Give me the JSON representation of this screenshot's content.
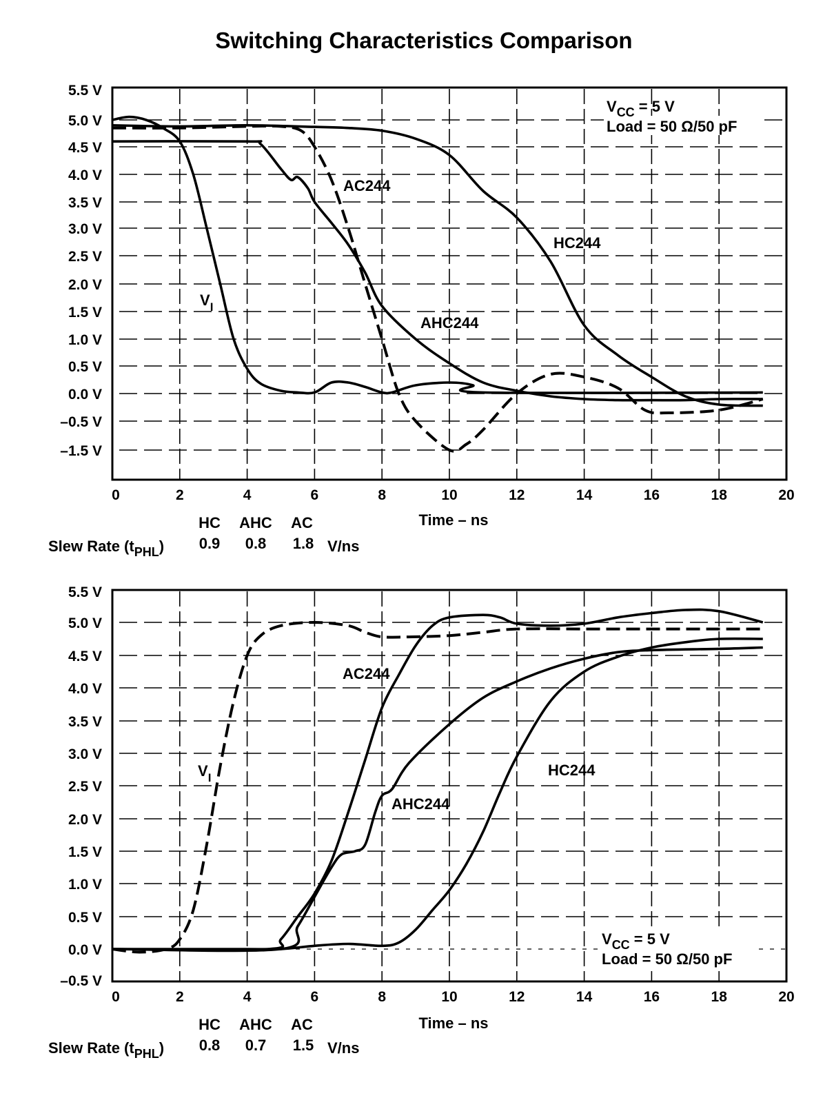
{
  "chart_data": [
    {
      "type": "line",
      "title": "Switching Characteristics Comparison",
      "xlabel": "Time – ns",
      "ylabel": "",
      "xlim": [
        0,
        20
      ],
      "x_ticks": [
        "0",
        "2",
        "4",
        "6",
        "8",
        "10",
        "12",
        "14",
        "16",
        "18",
        "20"
      ],
      "y_ticks": [
        {
          "v": 5.5,
          "label": "5.5 V"
        },
        {
          "v": 5.0,
          "label": "5.0 V"
        },
        {
          "v": 4.5,
          "label": "4.5 V"
        },
        {
          "v": 4.0,
          "label": "4.0 V"
        },
        {
          "v": 3.5,
          "label": "3.5 V"
        },
        {
          "v": 3.0,
          "label": "3.0 V"
        },
        {
          "v": 2.5,
          "label": "2.5 V"
        },
        {
          "v": 2.0,
          "label": "2.0 V"
        },
        {
          "v": 1.5,
          "label": "1.5 V"
        },
        {
          "v": 1.0,
          "label": "1.0 V"
        },
        {
          "v": 0.5,
          "label": "0.5 V"
        },
        {
          "v": 0.0,
          "label": "0.0 V"
        },
        {
          "v": -0.5,
          "label": "–0.5 V"
        },
        {
          "v": -1.5,
          "label": "–1.5 V"
        }
      ],
      "grid": true,
      "annotation": {
        "line1_main": "V",
        "line1_sub": "CC",
        "line1_rest": " = 5 V",
        "line2": "Load = 50 Ω/50 pF",
        "placement": "top-right"
      },
      "series": [
        {
          "name": "VI",
          "style": "solid",
          "label_main": "V",
          "label_sub": "I",
          "x": [
            0,
            0.5,
            1,
            1.5,
            2,
            2.4,
            2.8,
            3.2,
            3.6,
            4,
            4.4,
            5,
            5.5,
            6,
            6.5,
            7,
            7.5,
            8,
            8.3,
            9,
            10,
            10.7,
            11,
            19.3
          ],
          "y": [
            5.0,
            5.05,
            5.0,
            4.85,
            4.6,
            4.0,
            3.0,
            2.0,
            1.0,
            0.45,
            0.18,
            0.05,
            0.02,
            0.02,
            0.2,
            0.2,
            0.12,
            0.02,
            0.02,
            0.15,
            0.2,
            0.15,
            0.02,
            0.02
          ]
        },
        {
          "name": "AC244",
          "style": "dashed",
          "label": "AC244",
          "x": [
            0,
            2,
            4,
            5,
            5.6,
            6,
            6.5,
            7,
            7.5,
            8,
            8.5,
            9,
            10,
            10.5,
            11,
            12,
            13,
            14,
            15,
            15.8,
            16.5,
            18,
            19.3
          ],
          "y": [
            4.85,
            4.85,
            4.88,
            4.88,
            4.8,
            4.5,
            3.9,
            3.0,
            2.0,
            1.0,
            0.0,
            -0.5,
            -1.5,
            -1.3,
            -0.8,
            0.0,
            0.35,
            0.3,
            0.1,
            -0.3,
            -0.35,
            -0.3,
            -0.1
          ]
        },
        {
          "name": "AHC244",
          "style": "solid",
          "label": "AHC244",
          "x": [
            0,
            4,
            4.4,
            5,
            5.3,
            5.5,
            5.8,
            6,
            6.5,
            7,
            7.5,
            8,
            9,
            10,
            11,
            12,
            13,
            14,
            15,
            16,
            17,
            18,
            19.3
          ],
          "y": [
            4.6,
            4.6,
            4.55,
            4.1,
            3.9,
            3.95,
            3.75,
            3.5,
            3.1,
            2.7,
            2.2,
            1.6,
            1.0,
            0.55,
            0.2,
            0.05,
            -0.05,
            -0.1,
            -0.12,
            -0.12,
            -0.12,
            -0.1,
            -0.1
          ]
        },
        {
          "name": "HC244",
          "style": "solid",
          "label": "HC244",
          "x": [
            0,
            2,
            4,
            6,
            7,
            8,
            9,
            10,
            11,
            12,
            13,
            14,
            15,
            16,
            17,
            18,
            19.3
          ],
          "y": [
            4.9,
            4.88,
            4.9,
            4.87,
            4.85,
            4.8,
            4.65,
            4.35,
            3.7,
            3.2,
            2.4,
            1.25,
            0.7,
            0.3,
            -0.05,
            -0.2,
            -0.22
          ]
        }
      ],
      "slew_rate": {
        "label_main": "Slew Rate (t",
        "label_sub": "PHL",
        "label_close": ")",
        "headers": [
          "HC",
          "AHC",
          "AC"
        ],
        "values": [
          "0.9",
          "0.8",
          "1.8"
        ],
        "unit": "V/ns"
      }
    },
    {
      "type": "line",
      "title": "",
      "xlabel": "Time – ns",
      "ylabel": "",
      "xlim": [
        0,
        20
      ],
      "x_ticks": [
        "0",
        "2",
        "4",
        "6",
        "8",
        "10",
        "12",
        "14",
        "16",
        "18",
        "20"
      ],
      "y_ticks": [
        {
          "v": 5.5,
          "label": "5.5 V"
        },
        {
          "v": 5.0,
          "label": "5.0 V"
        },
        {
          "v": 4.5,
          "label": "4.5 V"
        },
        {
          "v": 4.0,
          "label": "4.0 V"
        },
        {
          "v": 3.5,
          "label": "3.5 V"
        },
        {
          "v": 3.0,
          "label": "3.0 V"
        },
        {
          "v": 2.5,
          "label": "2.5 V"
        },
        {
          "v": 2.0,
          "label": "2.0 V"
        },
        {
          "v": 1.5,
          "label": "1.5 V"
        },
        {
          "v": 1.0,
          "label": "1.0 V"
        },
        {
          "v": 0.5,
          "label": "0.5 V"
        },
        {
          "v": 0.0,
          "label": "0.0 V"
        },
        {
          "v": -0.5,
          "label": "–0.5 V"
        }
      ],
      "grid": true,
      "annotation": {
        "line1_main": "V",
        "line1_sub": "CC",
        "line1_rest": " = 5 V",
        "line2": "Load = 50 Ω/50 pF",
        "placement": "bottom-right"
      },
      "series": [
        {
          "name": "VI",
          "style": "dashed",
          "label_main": "V",
          "label_sub": "I",
          "x": [
            0,
            0.8,
            1.6,
            2,
            2.4,
            2.8,
            3.2,
            3.6,
            4,
            4.4,
            5,
            6,
            7,
            7.5,
            8,
            8.8,
            10,
            11,
            12,
            14,
            16,
            18,
            19.3
          ],
          "y": [
            0.0,
            -0.05,
            0.0,
            0.15,
            0.6,
            1.6,
            2.8,
            3.8,
            4.5,
            4.8,
            4.95,
            5.0,
            4.95,
            4.85,
            4.78,
            4.78,
            4.8,
            4.85,
            4.9,
            4.9,
            4.9,
            4.9,
            4.9
          ]
        },
        {
          "name": "AC244",
          "style": "solid",
          "label": "AC244",
          "x": [
            0,
            4.6,
            5,
            5.5,
            6,
            6.5,
            7,
            7.5,
            8,
            8.5,
            9,
            9.5,
            10,
            11,
            11.5,
            12,
            13,
            14,
            15,
            16,
            17,
            18,
            19.3
          ],
          "y": [
            0.0,
            0.0,
            0.15,
            0.5,
            0.85,
            1.35,
            2.1,
            2.9,
            3.7,
            4.2,
            4.65,
            4.95,
            5.08,
            5.12,
            5.08,
            4.98,
            4.95,
            4.98,
            5.08,
            5.15,
            5.2,
            5.18,
            5.0
          ]
        },
        {
          "name": "AHC244",
          "style": "solid",
          "label": "AHC244",
          "x": [
            0,
            5,
            5.5,
            6,
            6.5,
            6.8,
            7.2,
            7.5,
            7.8,
            8,
            8.3,
            8.8,
            10,
            11,
            12,
            13,
            14,
            15,
            16,
            18,
            19.3
          ],
          "y": [
            0.0,
            0.0,
            0.35,
            0.8,
            1.25,
            1.45,
            1.5,
            1.6,
            2.1,
            2.35,
            2.45,
            2.85,
            3.45,
            3.85,
            4.1,
            4.3,
            4.45,
            4.55,
            4.58,
            4.6,
            4.62
          ]
        },
        {
          "name": "HC244",
          "style": "solid",
          "label": "HC244",
          "x": [
            0,
            4,
            5,
            6,
            7,
            8,
            8.5,
            9,
            9.5,
            10,
            10.5,
            11,
            11.5,
            12,
            13,
            14,
            15,
            16,
            17,
            18,
            19.3
          ],
          "y": [
            0.0,
            0.0,
            0.0,
            0.05,
            0.08,
            0.05,
            0.1,
            0.3,
            0.6,
            0.9,
            1.3,
            1.8,
            2.4,
            2.95,
            3.8,
            4.25,
            4.48,
            4.62,
            4.7,
            4.75,
            4.75
          ]
        }
      ],
      "slew_rate": {
        "label_main": "Slew Rate (t",
        "label_sub": "PHL",
        "label_close": ")",
        "headers": [
          "HC",
          "AHC",
          "AC"
        ],
        "values": [
          "0.8",
          "0.7",
          "1.5"
        ],
        "unit": "V/ns"
      }
    }
  ]
}
